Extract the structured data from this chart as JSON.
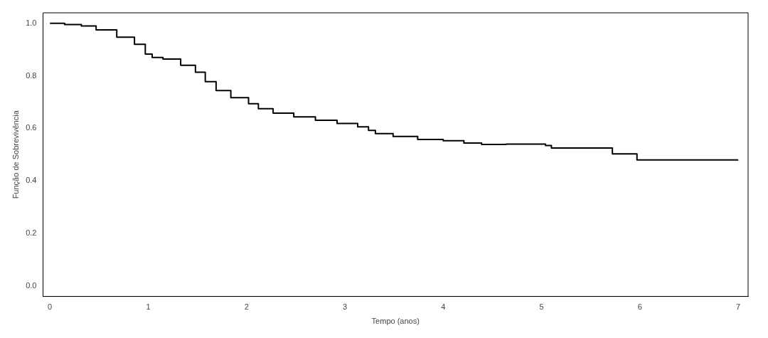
{
  "chart_data": {
    "type": "step",
    "xlabel": "Tempo (anos)",
    "ylabel": "Função de Sobrevivência",
    "xlim": [
      -0.07,
      7.1
    ],
    "ylim": [
      -0.04,
      1.04
    ],
    "xticks": [
      0,
      1,
      2,
      3,
      4,
      5,
      6,
      7
    ],
    "yticks": [
      {
        "value": 0,
        "label": "0.0"
      },
      {
        "value": 0.2,
        "label": "0.2"
      },
      {
        "value": 0.4,
        "label": "0.4"
      },
      {
        "value": 0.6,
        "label": "0.6"
      },
      {
        "value": 0.8,
        "label": "0.8"
      },
      {
        "value": 1,
        "label": "1.0"
      }
    ],
    "grid": false,
    "legend": false,
    "marker": "none",
    "line_style": "solid",
    "series": [
      {
        "color": "#000000",
        "x": [
          0,
          0.15,
          0.32,
          0.47,
          0.68,
          0.86,
          0.97,
          1.04,
          1.15,
          1.33,
          1.48,
          1.58,
          1.69,
          1.84,
          2.02,
          2.12,
          2.27,
          2.48,
          2.7,
          2.92,
          3.13,
          3.24,
          3.31,
          3.49,
          3.74,
          4.0,
          4.21,
          4.39,
          4.64,
          5.04,
          5.1,
          5.72,
          5.97,
          7.0
        ],
        "values": [
          1.0,
          0.995,
          0.99,
          0.975,
          0.947,
          0.92,
          0.883,
          0.87,
          0.864,
          0.84,
          0.814,
          0.778,
          0.744,
          0.717,
          0.694,
          0.675,
          0.658,
          0.644,
          0.631,
          0.619,
          0.606,
          0.592,
          0.58,
          0.569,
          0.558,
          0.553,
          0.544,
          0.539,
          0.54,
          0.535,
          0.525,
          0.503,
          0.48,
          0.48
        ]
      }
    ]
  }
}
